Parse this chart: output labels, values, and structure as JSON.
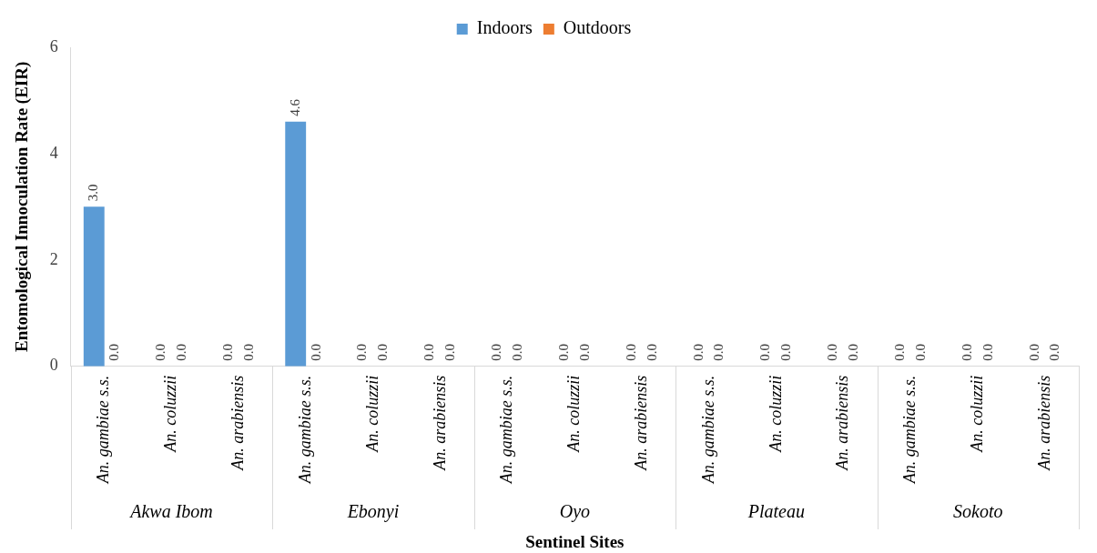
{
  "chart_data": {
    "type": "bar",
    "categories": [
      "An. gambiae s.s.",
      "An. coluzzii",
      "An. arabiensis",
      "An. gambiae s.s.",
      "An. coluzzii",
      "An. arabiensis",
      "An. gambiae s.s.",
      "An. coluzzii",
      "An. arabiensis",
      "An. gambiae s.s.",
      "An. coluzzii",
      "An. arabiensis",
      "An. gambiae s.s.",
      "An. coluzzii",
      "An. arabiensis"
    ],
    "series": [
      {
        "name": "Indoors",
        "color": "#5b9bd5",
        "values": [
          3.0,
          0,
          0,
          4.6,
          0,
          0,
          0,
          0,
          0,
          0,
          0,
          0,
          0,
          0,
          0
        ],
        "value_labels": [
          "3.0",
          "0.0",
          "0.0",
          "4.6",
          "0.0",
          "0.0",
          "0.0",
          "0.0",
          "0.0",
          "0.0",
          "0.0",
          "0.0",
          "0.0",
          "0.0",
          "0.0"
        ]
      },
      {
        "name": "Outdoors",
        "color": "#ed7d31",
        "values": [
          0,
          0,
          0,
          0,
          0,
          0,
          0,
          0,
          0,
          0,
          0,
          0,
          0,
          0,
          0
        ],
        "value_labels": [
          "0.0",
          "0.0",
          "0.0",
          "0.0",
          "0.0",
          "0.0",
          "0.0",
          "0.0",
          "0.0",
          "0.0",
          "0.0",
          "0.0",
          "0.0",
          "0.0",
          "0.0"
        ]
      }
    ],
    "annotations": [
      "Akwa Ibom",
      "Ebonyi",
      "Oyo",
      "Plateau",
      "Sokoto"
    ],
    "xlabel": "Sentinel Sites",
    "ylabel": "Entomological Innoculation Rate (EIR)",
    "ylim": [
      0,
      6
    ],
    "yticks": [
      0,
      2,
      4,
      6
    ],
    "grid": false,
    "legend": "top"
  }
}
